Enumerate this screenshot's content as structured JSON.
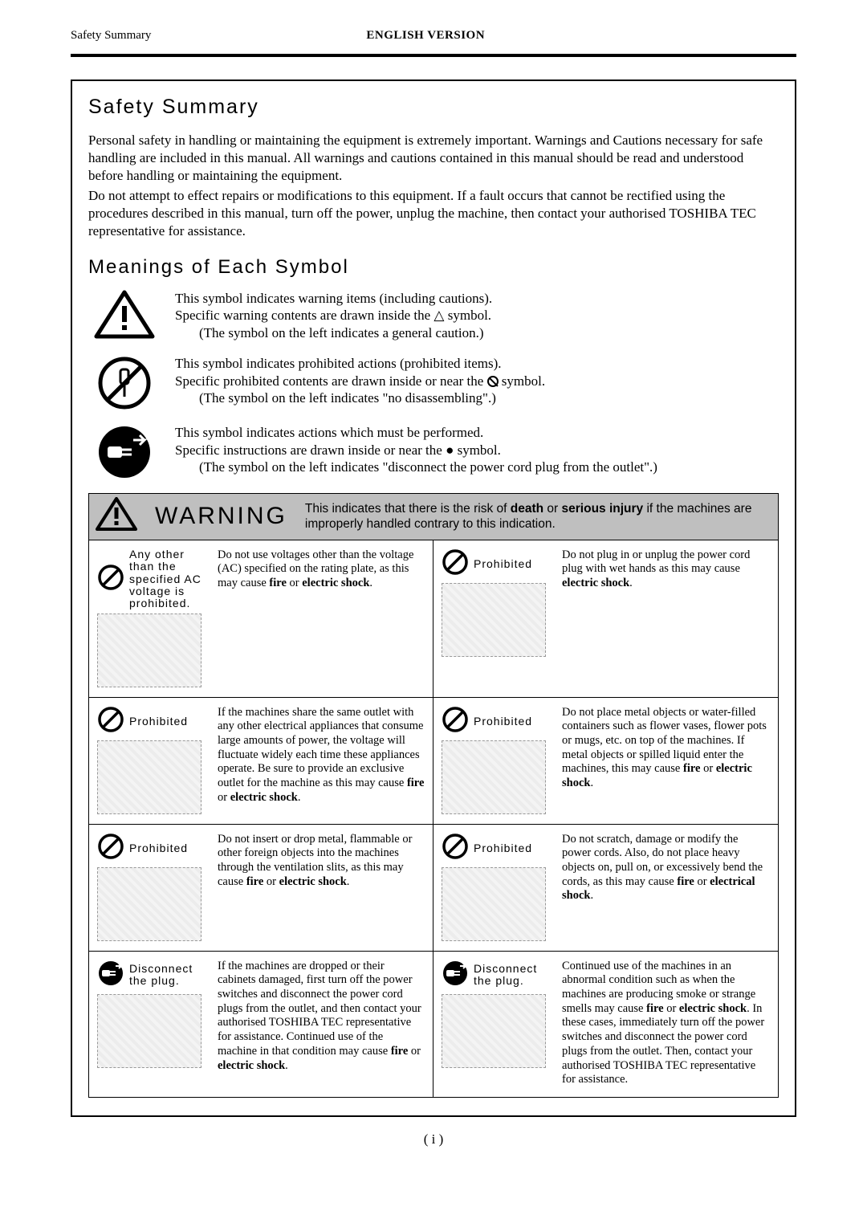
{
  "header": {
    "left": "Safety Summary",
    "center": "ENGLISH VERSION"
  },
  "section1_title": "Safety Summary",
  "intro_p1": "Personal safety in handling or maintaining the equipment is extremely important.  Warnings and Cautions necessary for safe handling are included in this manual.  All warnings and cautions contained in this manual should be read and understood before handling or maintaining the equipment.",
  "intro_p2": "Do not attempt to effect repairs or modifications to this equipment.  If a fault occurs that cannot be rectified using the procedures described in this manual, turn off the power, unplug the machine, then contact your authorised TOSHIBA TEC representative for assistance.",
  "section2_title": "Meanings of Each Symbol",
  "symbols": [
    {
      "line1": "This symbol indicates warning items (including cautions).",
      "line2_pre": "Specific warning contents are drawn inside the ",
      "line2_post": " symbol.",
      "line3": "(The symbol on the left indicates a general caution.)"
    },
    {
      "line1": "This symbol indicates prohibited actions (prohibited items).",
      "line2_pre": "Specific prohibited contents are drawn inside or near the ",
      "line2_post": " symbol.",
      "line3": "(The symbol on the left indicates \"no disassembling\".)"
    },
    {
      "line1": "This symbol indicates actions which must be performed.",
      "line2_pre": "Specific instructions are drawn inside or near the ",
      "line2_post": " symbol.",
      "line3": "(The symbol on the left indicates \"disconnect the power cord plug from the outlet\".)"
    }
  ],
  "warning_word": "WARNING",
  "warning_desc_pre": "This indicates that there is the risk of ",
  "warning_bold1": "death",
  "warning_mid": " or ",
  "warning_bold2": "serious injury",
  "warning_desc_post": " if the machines are improperly handled contrary to this indication.",
  "cells": [
    {
      "label": "Any other than the specified AC voltage is prohibited.",
      "text_pre": "Do not use voltages other than the voltage (AC) specified on the rating plate, as this may cause ",
      "bold1": "fire",
      "mid": " or ",
      "bold2": "electric shock",
      "post": "."
    },
    {
      "label": "Prohibited",
      "text_pre": "Do not plug in or unplug the power cord plug with wet hands as this may cause ",
      "bold1": "electric shock",
      "mid": "",
      "bold2": "",
      "post": "."
    },
    {
      "label": "Prohibited",
      "text_pre": "If the machines share the same outlet with any other electrical appliances that  consume large amounts of power, the voltage will fluctuate widely each time these appliances operate.  Be sure to provide an exclusive outlet for the machine as this may cause ",
      "bold1": "fire",
      "mid": " or ",
      "bold2": "electric shock",
      "post": "."
    },
    {
      "label": "Prohibited",
      "text_pre": "Do not place metal objects or water-filled containers such as flower vases, flower pots or mugs, etc. on top of the machines.  If metal objects or spilled liquid enter the machines, this may cause ",
      "bold1": "fire",
      "mid": " or ",
      "bold2": "electric shock",
      "post": "."
    },
    {
      "label": "Prohibited",
      "text_pre": "Do not insert or drop metal, flammable or other foreign objects into the machines through the ventilation slits, as this may cause ",
      "bold1": "fire",
      "mid": " or ",
      "bold2": "electric shock",
      "post": "."
    },
    {
      "label": "Prohibited",
      "text_pre": "Do not scratch, damage or modify the power cords.  Also, do not place heavy objects on, pull on, or excessively bend the cords, as this may cause ",
      "bold1": "fire",
      "mid": " or ",
      "bold2": "electrical shock",
      "post": "."
    },
    {
      "label": "Disconnect the plug.",
      "text_pre": "If the machines are dropped or their cabinets damaged, first turn off the power switches and disconnect the power cord plugs from the outlet, and then contact your authorised TOSHIBA TEC representative for assistance.  Continued use of the machine in that condition may cause ",
      "bold1": "fire",
      "mid": " or ",
      "bold2": "electric shock",
      "post": "."
    },
    {
      "label": "Disconnect the plug.",
      "text_pre": "Continued use of the machines in an abnormal condition such as when the machines are producing smoke or strange smells may cause ",
      "bold1": "fire",
      "mid": " or ",
      "bold2": "electric shock",
      "post": ".  In these cases, immediately turn off the power switches and disconnect the power cord plugs from the outlet.  Then, contact your authorised TOSHIBA TEC representative for assistance."
    }
  ],
  "pagenum": "( i )"
}
